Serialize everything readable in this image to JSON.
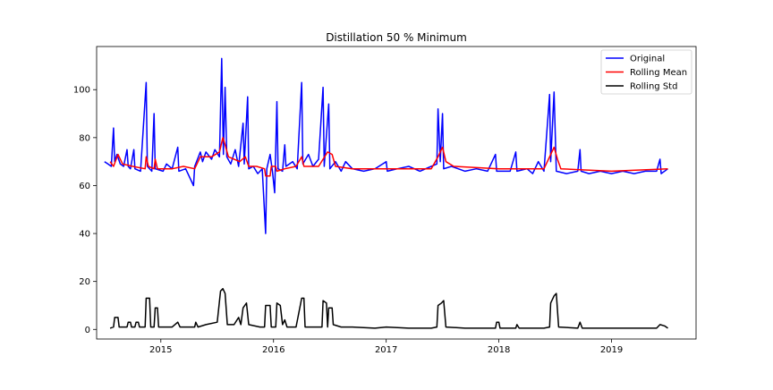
{
  "chart_data": {
    "type": "line",
    "title": "Distillation 50 % Minimum",
    "xlabel": "",
    "ylabel": "",
    "xlim": [
      2014.43,
      2019.75
    ],
    "ylim": [
      -4,
      118
    ],
    "x_ticks": [
      {
        "value": 2015,
        "label": "2015"
      },
      {
        "value": 2016,
        "label": "2016"
      },
      {
        "value": 2017,
        "label": "2017"
      },
      {
        "value": 2018,
        "label": "2018"
      },
      {
        "value": 2019,
        "label": "2019"
      }
    ],
    "y_ticks": [
      {
        "value": 0,
        "label": "0"
      },
      {
        "value": 20,
        "label": "20"
      },
      {
        "value": 40,
        "label": "40"
      },
      {
        "value": 60,
        "label": "60"
      },
      {
        "value": 80,
        "label": "80"
      },
      {
        "value": 100,
        "label": "100"
      }
    ],
    "grid": false,
    "legend_position": "top-right",
    "series": [
      {
        "name": "Original",
        "color": "#0000ff",
        "points": [
          [
            2014.5,
            70
          ],
          [
            2014.53,
            69
          ],
          [
            2014.56,
            68
          ],
          [
            2014.58,
            84
          ],
          [
            2014.59,
            70
          ],
          [
            2014.61,
            73
          ],
          [
            2014.64,
            69
          ],
          [
            2014.67,
            68
          ],
          [
            2014.7,
            75
          ],
          [
            2014.71,
            68
          ],
          [
            2014.73,
            67
          ],
          [
            2014.76,
            75
          ],
          [
            2014.77,
            67
          ],
          [
            2014.82,
            66
          ],
          [
            2014.87,
            103
          ],
          [
            2014.88,
            68
          ],
          [
            2014.92,
            66
          ],
          [
            2014.94,
            90
          ],
          [
            2014.95,
            67
          ],
          [
            2015.02,
            66
          ],
          [
            2015.05,
            69
          ],
          [
            2015.1,
            67
          ],
          [
            2015.15,
            76
          ],
          [
            2015.16,
            66
          ],
          [
            2015.22,
            67
          ],
          [
            2015.29,
            60
          ],
          [
            2015.3,
            68
          ],
          [
            2015.35,
            74
          ],
          [
            2015.37,
            70
          ],
          [
            2015.4,
            74
          ],
          [
            2015.45,
            71
          ],
          [
            2015.48,
            75
          ],
          [
            2015.52,
            72
          ],
          [
            2015.54,
            113
          ],
          [
            2015.555,
            73
          ],
          [
            2015.57,
            101
          ],
          [
            2015.585,
            72
          ],
          [
            2015.62,
            69
          ],
          [
            2015.66,
            75
          ],
          [
            2015.69,
            68
          ],
          [
            2015.73,
            86
          ],
          [
            2015.74,
            69
          ],
          [
            2015.77,
            97
          ],
          [
            2015.78,
            67
          ],
          [
            2015.82,
            68
          ],
          [
            2015.86,
            65
          ],
          [
            2015.9,
            67
          ],
          [
            2015.93,
            40
          ],
          [
            2015.94,
            67
          ],
          [
            2015.97,
            73
          ],
          [
            2015.99,
            66
          ],
          [
            2016.01,
            57
          ],
          [
            2016.03,
            95
          ],
          [
            2016.04,
            67
          ],
          [
            2016.08,
            66
          ],
          [
            2016.1,
            77
          ],
          [
            2016.11,
            68
          ],
          [
            2016.17,
            70
          ],
          [
            2016.21,
            67
          ],
          [
            2016.25,
            103
          ],
          [
            2016.26,
            69
          ],
          [
            2016.31,
            73
          ],
          [
            2016.35,
            68
          ],
          [
            2016.4,
            71
          ],
          [
            2016.44,
            101
          ],
          [
            2016.45,
            68
          ],
          [
            2016.49,
            94
          ],
          [
            2016.5,
            67
          ],
          [
            2016.55,
            70
          ],
          [
            2016.6,
            66
          ],
          [
            2016.64,
            70
          ],
          [
            2016.7,
            67
          ],
          [
            2016.8,
            66
          ],
          [
            2016.9,
            67
          ],
          [
            2017.0,
            70
          ],
          [
            2017.01,
            66
          ],
          [
            2017.1,
            67
          ],
          [
            2017.2,
            68
          ],
          [
            2017.3,
            66
          ],
          [
            2017.4,
            68
          ],
          [
            2017.45,
            69
          ],
          [
            2017.46,
            92
          ],
          [
            2017.48,
            70
          ],
          [
            2017.5,
            90
          ],
          [
            2017.51,
            67
          ],
          [
            2017.58,
            68
          ],
          [
            2017.7,
            66
          ],
          [
            2017.8,
            67
          ],
          [
            2017.9,
            66
          ],
          [
            2017.97,
            73
          ],
          [
            2017.98,
            66
          ],
          [
            2018.1,
            66
          ],
          [
            2018.15,
            74
          ],
          [
            2018.16,
            66
          ],
          [
            2018.25,
            67
          ],
          [
            2018.3,
            65
          ],
          [
            2018.35,
            70
          ],
          [
            2018.4,
            66
          ],
          [
            2018.45,
            98
          ],
          [
            2018.46,
            70
          ],
          [
            2018.49,
            99
          ],
          [
            2018.51,
            66
          ],
          [
            2018.6,
            65
          ],
          [
            2018.7,
            66
          ],
          [
            2018.72,
            75
          ],
          [
            2018.73,
            66
          ],
          [
            2018.8,
            65
          ],
          [
            2018.9,
            66
          ],
          [
            2019.0,
            65
          ],
          [
            2019.1,
            66
          ],
          [
            2019.2,
            65
          ],
          [
            2019.3,
            66
          ],
          [
            2019.4,
            66
          ],
          [
            2019.43,
            71
          ],
          [
            2019.44,
            65
          ],
          [
            2019.5,
            67
          ]
        ]
      },
      {
        "name": "Rolling Mean",
        "color": "#ff0000",
        "points": [
          [
            2014.55,
            70
          ],
          [
            2014.58,
            68
          ],
          [
            2014.62,
            73
          ],
          [
            2014.66,
            69
          ],
          [
            2014.75,
            68
          ],
          [
            2014.86,
            67
          ],
          [
            2014.87,
            72
          ],
          [
            2014.89,
            68
          ],
          [
            2014.94,
            67
          ],
          [
            2014.95,
            71
          ],
          [
            2014.97,
            67
          ],
          [
            2015.1,
            67
          ],
          [
            2015.2,
            68
          ],
          [
            2015.3,
            67
          ],
          [
            2015.35,
            72
          ],
          [
            2015.45,
            72
          ],
          [
            2015.52,
            74
          ],
          [
            2015.55,
            80
          ],
          [
            2015.57,
            77
          ],
          [
            2015.6,
            72
          ],
          [
            2015.7,
            70
          ],
          [
            2015.75,
            72
          ],
          [
            2015.78,
            68
          ],
          [
            2015.85,
            68
          ],
          [
            2015.92,
            67
          ],
          [
            2015.93,
            64
          ],
          [
            2015.97,
            64
          ],
          [
            2015.98,
            68
          ],
          [
            2016.02,
            68
          ],
          [
            2016.03,
            66
          ],
          [
            2016.1,
            67
          ],
          [
            2016.2,
            68
          ],
          [
            2016.25,
            72
          ],
          [
            2016.27,
            68
          ],
          [
            2016.4,
            68
          ],
          [
            2016.44,
            71
          ],
          [
            2016.48,
            74
          ],
          [
            2016.52,
            73
          ],
          [
            2016.55,
            68
          ],
          [
            2016.7,
            67
          ],
          [
            2017.0,
            67
          ],
          [
            2017.4,
            67
          ],
          [
            2017.46,
            72
          ],
          [
            2017.5,
            76
          ],
          [
            2017.53,
            70
          ],
          [
            2017.6,
            68
          ],
          [
            2018.0,
            67
          ],
          [
            2018.4,
            67
          ],
          [
            2018.45,
            72
          ],
          [
            2018.49,
            76
          ],
          [
            2018.52,
            71
          ],
          [
            2018.55,
            67
          ],
          [
            2019.0,
            66
          ],
          [
            2019.5,
            67
          ]
        ]
      },
      {
        "name": "Rolling Std",
        "color": "#000000",
        "points": [
          [
            2014.55,
            0.5
          ],
          [
            2014.58,
            1
          ],
          [
            2014.59,
            5
          ],
          [
            2014.62,
            5
          ],
          [
            2014.63,
            1
          ],
          [
            2014.7,
            1
          ],
          [
            2014.71,
            3
          ],
          [
            2014.73,
            3
          ],
          [
            2014.74,
            1
          ],
          [
            2014.77,
            1
          ],
          [
            2014.78,
            3
          ],
          [
            2014.8,
            3
          ],
          [
            2014.81,
            1
          ],
          [
            2014.86,
            1
          ],
          [
            2014.87,
            13
          ],
          [
            2014.9,
            13
          ],
          [
            2014.91,
            1
          ],
          [
            2014.94,
            1
          ],
          [
            2014.95,
            9
          ],
          [
            2014.97,
            9
          ],
          [
            2014.98,
            1
          ],
          [
            2015.1,
            1
          ],
          [
            2015.15,
            3
          ],
          [
            2015.17,
            1
          ],
          [
            2015.3,
            1
          ],
          [
            2015.31,
            3
          ],
          [
            2015.33,
            1
          ],
          [
            2015.4,
            2
          ],
          [
            2015.5,
            3
          ],
          [
            2015.53,
            16
          ],
          [
            2015.55,
            17
          ],
          [
            2015.57,
            15
          ],
          [
            2015.59,
            2
          ],
          [
            2015.65,
            2
          ],
          [
            2015.69,
            5
          ],
          [
            2015.71,
            2
          ],
          [
            2015.73,
            9
          ],
          [
            2015.76,
            11
          ],
          [
            2015.78,
            2
          ],
          [
            2015.88,
            1
          ],
          [
            2015.92,
            1
          ],
          [
            2015.93,
            10
          ],
          [
            2015.97,
            10
          ],
          [
            2015.98,
            1
          ],
          [
            2016.02,
            1
          ],
          [
            2016.03,
            11
          ],
          [
            2016.06,
            10
          ],
          [
            2016.08,
            2
          ],
          [
            2016.1,
            4
          ],
          [
            2016.12,
            1
          ],
          [
            2016.2,
            1
          ],
          [
            2016.25,
            13
          ],
          [
            2016.27,
            13
          ],
          [
            2016.28,
            1
          ],
          [
            2016.43,
            1
          ],
          [
            2016.44,
            12
          ],
          [
            2016.47,
            11
          ],
          [
            2016.48,
            1
          ],
          [
            2016.49,
            9
          ],
          [
            2016.52,
            9
          ],
          [
            2016.53,
            2
          ],
          [
            2016.6,
            1
          ],
          [
            2016.7,
            1
          ],
          [
            2016.9,
            0.5
          ],
          [
            2017.0,
            1
          ],
          [
            2017.2,
            0.5
          ],
          [
            2017.4,
            0.5
          ],
          [
            2017.45,
            1
          ],
          [
            2017.46,
            10
          ],
          [
            2017.49,
            11
          ],
          [
            2017.51,
            12
          ],
          [
            2017.53,
            1
          ],
          [
            2017.7,
            0.5
          ],
          [
            2017.97,
            0.5
          ],
          [
            2017.98,
            3
          ],
          [
            2018.0,
            3
          ],
          [
            2018.01,
            0.5
          ],
          [
            2018.15,
            0.5
          ],
          [
            2018.16,
            2
          ],
          [
            2018.18,
            0.5
          ],
          [
            2018.4,
            0.5
          ],
          [
            2018.45,
            1
          ],
          [
            2018.46,
            11
          ],
          [
            2018.49,
            14
          ],
          [
            2018.51,
            15
          ],
          [
            2018.53,
            1
          ],
          [
            2018.7,
            0.5
          ],
          [
            2018.72,
            3
          ],
          [
            2018.74,
            0.5
          ],
          [
            2019.0,
            0.5
          ],
          [
            2019.4,
            0.5
          ],
          [
            2019.43,
            2
          ],
          [
            2019.47,
            1.5
          ],
          [
            2019.5,
            0.5
          ]
        ]
      }
    ]
  }
}
